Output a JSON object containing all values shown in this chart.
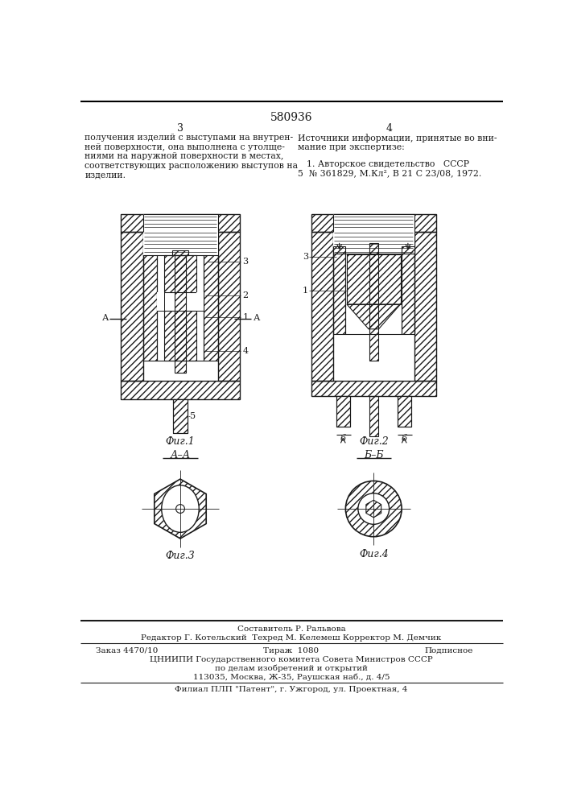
{
  "patent_number": "580936",
  "text_left": [
    "получения изделий с выступами на внутрен-",
    "ней поверхности, она выполнена с утолще-",
    "ниями на наружной поверхности в местах,",
    "соответствующих расположению выступов на",
    "изделии."
  ],
  "text_right_title": "Источники информации, принятые во вни-",
  "text_right_title2": "мание при экспертизе:",
  "text_right_ref": "1. Авторское свидетельство   СССР",
  "text_right_ref2": "5  № 361829, М.Кл², В 21 С 23/08, 1972.",
  "fig1_label": "Фиг.1",
  "fig2_label": "Фиг.2",
  "fig3_label": "Фиг.3",
  "fig4_label": "Фиг.4",
  "section_AA": "А–А",
  "section_BB": "Б–Б",
  "footer_composer": "Составитель Р. Ральвова",
  "footer_editor": "Редактор Г. Котельский  Техред М. Келемеш Корректор М. Демчик",
  "footer_order": "Заказ 4470/10",
  "footer_print": "Тираж  1080",
  "footer_sign": "Подписное",
  "footer_org": "ЦНИИПИ Государственного комитета Совета Министров СССР",
  "footer_dept": "по делам изобретений и открытий",
  "footer_addr": "113035, Москва, Ж-35, Раушская наб., д. 4/5",
  "footer_branch": "Филиал ПЛП \"Патент\", г. Ужгород, ул. Проектная, 4",
  "bg_color": "#ffffff",
  "lc": "#1a1a1a"
}
